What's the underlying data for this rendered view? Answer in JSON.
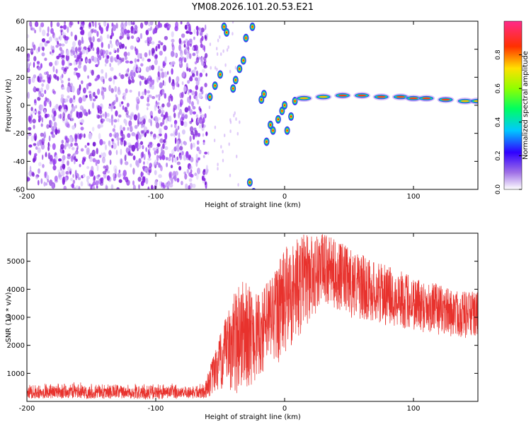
{
  "title": "YM08.2026.101.20.53.E21",
  "colors": {
    "background": "#ffffff",
    "snr_line": "#e8322d",
    "noise_purple": "#8a2be2",
    "axis": "#000000"
  },
  "chart_data": [
    {
      "type": "heatmap",
      "xlabel": "Height of straight line (km)",
      "ylabel": "Frequency (Hz)",
      "xlim": [
        -200,
        150
      ],
      "ylim": [
        -60,
        60
      ],
      "x_ticks": [
        "-200",
        "-100",
        "0",
        "100"
      ],
      "y_ticks": [
        "60",
        "40",
        "20",
        "0",
        "-20",
        "-40",
        "-60"
      ],
      "colorbar": {
        "label": "Normalized spectral amplitude",
        "range": [
          0,
          1
        ],
        "ticks": [
          "0.0",
          "0.2",
          "0.4",
          "0.6",
          "0.8"
        ]
      },
      "noise_region_km": [
        -200,
        -60
      ],
      "frequency_track": [
        {
          "km": -58,
          "hz": 6
        },
        {
          "km": -54,
          "hz": 14
        },
        {
          "km": -50,
          "hz": 22
        },
        {
          "km": -47,
          "hz": 56
        },
        {
          "km": -45,
          "hz": 52
        },
        {
          "km": -40,
          "hz": 12
        },
        {
          "km": -38,
          "hz": 18
        },
        {
          "km": -35,
          "hz": 26
        },
        {
          "km": -32,
          "hz": 32
        },
        {
          "km": -30,
          "hz": 48
        },
        {
          "km": -25,
          "hz": 56
        },
        {
          "km": -24,
          "hz": -62
        },
        {
          "km": -27,
          "hz": -55
        },
        {
          "km": -18,
          "hz": 4
        },
        {
          "km": -16,
          "hz": 8
        },
        {
          "km": -14,
          "hz": -26
        },
        {
          "km": -11,
          "hz": -14
        },
        {
          "km": -9,
          "hz": -18
        },
        {
          "km": -5,
          "hz": -10
        },
        {
          "km": -2,
          "hz": -4
        },
        {
          "km": 0,
          "hz": 0
        },
        {
          "km": 2,
          "hz": -18
        },
        {
          "km": 5,
          "hz": -8
        },
        {
          "km": 8,
          "hz": 3
        },
        {
          "km": 15,
          "hz": 5
        },
        {
          "km": 30,
          "hz": 6
        },
        {
          "km": 45,
          "hz": 7
        },
        {
          "km": 60,
          "hz": 7
        },
        {
          "km": 75,
          "hz": 6
        },
        {
          "km": 90,
          "hz": 6
        },
        {
          "km": 100,
          "hz": 5
        },
        {
          "km": 110,
          "hz": 5
        },
        {
          "km": 125,
          "hz": 4
        },
        {
          "km": 140,
          "hz": 3
        },
        {
          "km": 150,
          "hz": 3
        }
      ]
    },
    {
      "type": "line",
      "xlabel": "Height of straight line (km)",
      "ylabel": "SNR (10 * v/v)",
      "xlim": [
        -200,
        150
      ],
      "ylim": [
        0,
        6000
      ],
      "x_ticks": [
        "-200",
        "-100",
        "0",
        "100"
      ],
      "y_ticks": [
        "5000",
        "4000",
        "3000",
        "2000",
        "1000"
      ],
      "envelope": [
        {
          "km": -200,
          "lo": 100,
          "hi": 700
        },
        {
          "km": -150,
          "lo": 100,
          "hi": 700
        },
        {
          "km": -100,
          "lo": 80,
          "hi": 650
        },
        {
          "km": -62,
          "lo": 100,
          "hi": 700
        },
        {
          "km": -50,
          "lo": 300,
          "hi": 2400
        },
        {
          "km": -35,
          "lo": 200,
          "hi": 4500
        },
        {
          "km": -20,
          "lo": 800,
          "hi": 3800
        },
        {
          "km": 0,
          "lo": 1500,
          "hi": 5500
        },
        {
          "km": 15,
          "lo": 2500,
          "hi": 6000
        },
        {
          "km": 30,
          "lo": 3500,
          "hi": 6000
        },
        {
          "km": 50,
          "lo": 3000,
          "hi": 5500
        },
        {
          "km": 70,
          "lo": 2800,
          "hi": 5000
        },
        {
          "km": 100,
          "lo": 2500,
          "hi": 4500
        },
        {
          "km": 130,
          "lo": 2300,
          "hi": 4000
        },
        {
          "km": 150,
          "lo": 2200,
          "hi": 3900
        }
      ]
    }
  ]
}
